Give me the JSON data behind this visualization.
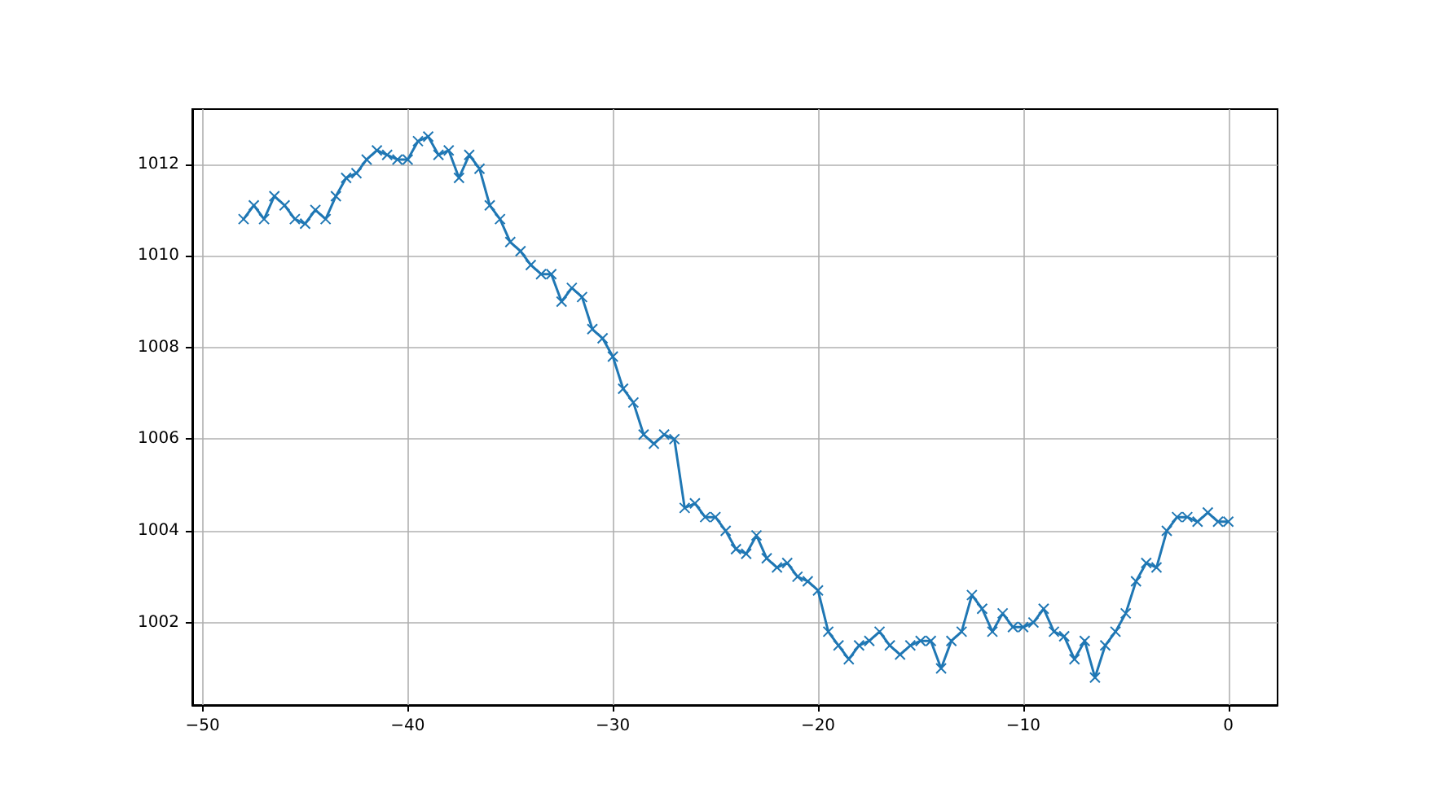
{
  "chart_data": {
    "type": "line",
    "x": [
      -48,
      -47.5,
      -47,
      -46.5,
      -46,
      -45.5,
      -45,
      -44.5,
      -44,
      -43.5,
      -43,
      -42.5,
      -42,
      -41.5,
      -41,
      -40.5,
      -40,
      -39.5,
      -39,
      -38.5,
      -38,
      -37.5,
      -37,
      -36.5,
      -36,
      -35.5,
      -35,
      -34.5,
      -34,
      -33.5,
      -33,
      -32.5,
      -32,
      -31.5,
      -31,
      -30.5,
      -30,
      -29.5,
      -29,
      -28.5,
      -28,
      -27.5,
      -27,
      -26.5,
      -26,
      -25.5,
      -25,
      -24.5,
      -24,
      -23.5,
      -23,
      -22.5,
      -22,
      -21.5,
      -21,
      -20.5,
      -20,
      -19.5,
      -19,
      -18.5,
      -18,
      -17.5,
      -17,
      -16.5,
      -16,
      -15.5,
      -15,
      -14.5,
      -14,
      -13.5,
      -13,
      -12.5,
      -12,
      -11.5,
      -11,
      -10.5,
      -10,
      -9.5,
      -9,
      -8.5,
      -8,
      -7.5,
      -7,
      -6.5,
      -6,
      -5.5,
      -5,
      -4.5,
      -4,
      -3.5,
      -3,
      -2.5,
      -2,
      -1.5,
      -1,
      -0.5,
      0
    ],
    "series": [
      {
        "color": "#1f77b4",
        "values": [
          1010.8,
          1011.1,
          1010.8,
          1011.3,
          1011.1,
          1010.8,
          1010.7,
          1011.0,
          1010.8,
          1011.3,
          1011.7,
          1011.8,
          1012.1,
          1012.3,
          1012.2,
          1012.1,
          1012.1,
          1012.5,
          1012.6,
          1012.2,
          1012.3,
          1011.7,
          1012.2,
          1011.9,
          1011.1,
          1010.8,
          1010.3,
          1010.1,
          1009.8,
          1009.6,
          1009.6,
          1009.0,
          1009.3,
          1009.1,
          1008.4,
          1008.2,
          1007.8,
          1007.1,
          1006.8,
          1006.1,
          1005.9,
          1006.1,
          1006.0,
          1004.5,
          1004.6,
          1004.3,
          1004.3,
          1004.0,
          1003.6,
          1003.5,
          1003.9,
          1003.4,
          1003.2,
          1003.3,
          1003.0,
          1002.9,
          1002.7,
          1001.8,
          1001.5,
          1001.2,
          1001.5,
          1001.6,
          1001.8,
          1001.5,
          1001.3,
          1001.5,
          1001.6,
          1001.6,
          1001.0,
          1001.6,
          1001.8,
          1002.6,
          1002.3,
          1001.8,
          1002.2,
          1001.9,
          1001.9,
          1002.0,
          1002.3,
          1001.8,
          1001.7,
          1001.2,
          1001.6,
          1000.8,
          1001.5,
          1001.8,
          1002.2,
          1002.9,
          1003.3,
          1003.2,
          1004.0,
          1004.3,
          1004.3,
          1004.2,
          1004.4,
          1004.2,
          1004.2
        ]
      }
    ],
    "xlim": [
      -50.5,
      2.4
    ],
    "ylim": [
      1000.2,
      1013.2
    ],
    "xticks": [
      -50,
      -40,
      -30,
      -20,
      -10,
      0
    ],
    "yticks": [
      1002,
      1004,
      1006,
      1008,
      1010,
      1012
    ],
    "grid": true,
    "marker": "cross",
    "line_style": "solid"
  }
}
